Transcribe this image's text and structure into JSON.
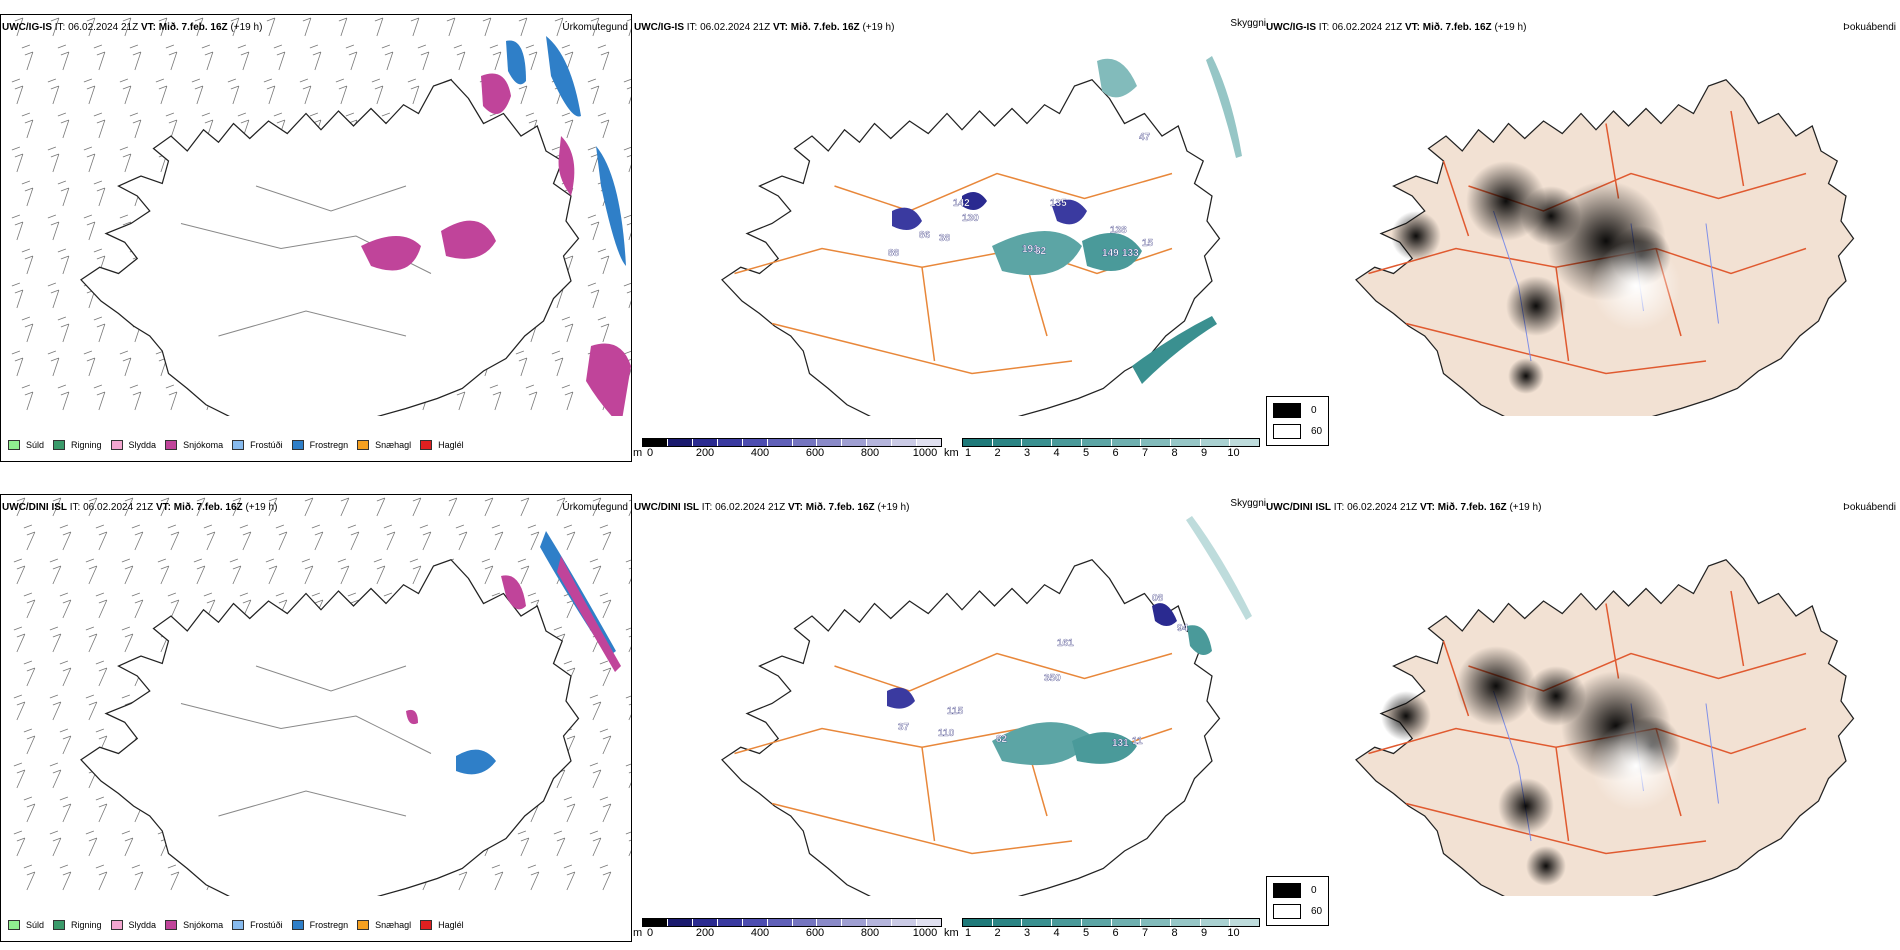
{
  "rows": [
    {
      "model": "UWC/IG-IS",
      "it_label": "IT:",
      "it_value": "06.02.2024 21Z",
      "vt_label": "VT:",
      "vt_value": "Mið. 7.feb. 16Z",
      "lead": "(+19 h)"
    },
    {
      "model": "UWC/DINI ISL",
      "it_label": "IT:",
      "it_value": "06.02.2024 21Z",
      "vt_label": "VT:",
      "vt_value": "Mið. 7.feb. 16Z",
      "lead": "(+19 h)"
    }
  ],
  "variables": {
    "precip_type": "Úrkomutegund",
    "visibility": "Skyggni",
    "fog": "Þokuábendi"
  },
  "precip_legend": [
    {
      "label": "Súld",
      "color": "#90ee90"
    },
    {
      "label": "Rigning",
      "color": "#3a9a6a"
    },
    {
      "label": "Slydda",
      "color": "#f4a6d0"
    },
    {
      "label": "Snjókoma",
      "color": "#c0449a"
    },
    {
      "label": "Frostúði",
      "color": "#88bbee"
    },
    {
      "label": "Frostregn",
      "color": "#2f7fc8"
    },
    {
      "label": "Snæhagl",
      "color": "#f5a020"
    },
    {
      "label": "Haglél",
      "color": "#e02020"
    }
  ],
  "height_bar": {
    "unit": "m",
    "ticks": [
      "0",
      "200",
      "400",
      "600",
      "800",
      "1000"
    ],
    "colors": [
      "#000000",
      "#1a1a6e",
      "#2a2a90",
      "#3a3aa0",
      "#4d4db0",
      "#6060b8",
      "#7575c0",
      "#8a8ac8",
      "#9f9fd2",
      "#b5b5dc",
      "#cbcbe6",
      "#e0e0f0"
    ]
  },
  "vis_bar": {
    "unit": "km",
    "ticks": [
      "1",
      "2",
      "3",
      "4",
      "5",
      "6",
      "7",
      "8",
      "9",
      "10"
    ],
    "colors": [
      "#1f7a7a",
      "#2c8585",
      "#3a9090",
      "#4a9a9a",
      "#5ca5a5",
      "#6fb0b0",
      "#82bbbb",
      "#96c6c6",
      "#aad1d1",
      "#bedcdc"
    ]
  },
  "fog_legend": [
    {
      "label": "0",
      "color": "#000000"
    },
    {
      "label": "60",
      "color": "#ffffff"
    }
  ],
  "map_labels": {
    "top": [
      "47",
      "135",
      "142",
      "130",
      "86",
      "88",
      "138",
      "38",
      "191",
      "82",
      "149",
      "133",
      "15"
    ],
    "bottom": [
      "08",
      "94",
      "161",
      "350",
      "115",
      "37",
      "110",
      "82",
      "131",
      "11"
    ]
  }
}
